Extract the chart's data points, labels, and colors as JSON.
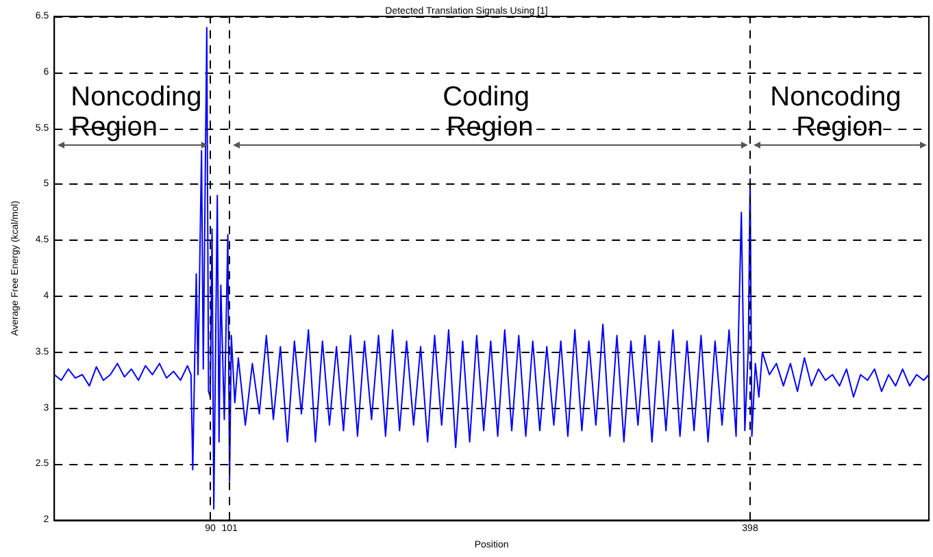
{
  "chart_data": {
    "type": "line",
    "title": "Detected Translation Signals Using [1]",
    "xlabel": "Position",
    "ylabel": "Average Free Energy (kcal/mol)",
    "x": [
      1,
      5,
      9,
      13,
      17,
      21,
      25,
      29,
      33,
      37,
      41,
      45,
      49,
      53,
      57,
      61,
      65,
      69,
      73,
      77,
      79,
      80,
      82,
      83,
      85,
      86,
      88,
      89,
      90,
      91,
      92,
      94,
      95,
      96,
      98,
      100,
      101,
      102,
      104,
      106,
      110,
      114,
      118,
      122,
      126,
      130,
      134,
      138,
      142,
      146,
      150,
      154,
      158,
      162,
      166,
      170,
      174,
      178,
      182,
      186,
      190,
      194,
      198,
      202,
      206,
      210,
      214,
      218,
      222,
      226,
      230,
      234,
      238,
      242,
      246,
      250,
      254,
      258,
      262,
      266,
      270,
      274,
      278,
      282,
      286,
      290,
      294,
      298,
      302,
      306,
      310,
      314,
      318,
      322,
      326,
      330,
      334,
      338,
      342,
      346,
      350,
      354,
      358,
      362,
      366,
      370,
      374,
      378,
      382,
      386,
      390,
      393,
      395,
      397,
      398,
      399,
      401,
      403,
      405,
      409,
      413,
      417,
      421,
      425,
      429,
      433,
      437,
      441,
      445,
      449,
      453,
      457,
      461,
      465,
      469,
      473,
      477,
      481,
      485,
      489,
      493,
      497,
      500
    ],
    "series": [
      {
        "color": "#0000ff",
        "values": [
          3.3,
          3.25,
          3.35,
          3.27,
          3.3,
          3.2,
          3.37,
          3.25,
          3.3,
          3.4,
          3.28,
          3.35,
          3.25,
          3.38,
          3.3,
          3.4,
          3.27,
          3.33,
          3.25,
          3.38,
          3.3,
          2.45,
          4.2,
          3.3,
          5.3,
          3.35,
          6.4,
          3.15,
          3.1,
          4.6,
          2.1,
          4.9,
          2.7,
          4.1,
          2.9,
          4.55,
          2.35,
          3.65,
          3.05,
          3.45,
          2.85,
          3.4,
          2.95,
          3.65,
          2.9,
          3.55,
          2.7,
          3.6,
          2.95,
          3.7,
          2.7,
          3.6,
          2.85,
          3.55,
          2.8,
          3.65,
          2.75,
          3.6,
          2.9,
          3.65,
          2.75,
          3.7,
          2.8,
          3.6,
          2.85,
          3.55,
          2.7,
          3.65,
          2.85,
          3.7,
          2.65,
          3.6,
          2.7,
          3.65,
          2.8,
          3.6,
          2.75,
          3.7,
          2.8,
          3.65,
          2.75,
          3.6,
          2.8,
          3.55,
          2.85,
          3.6,
          2.75,
          3.7,
          2.8,
          3.6,
          2.85,
          3.75,
          2.75,
          3.65,
          2.7,
          3.6,
          2.85,
          3.65,
          2.7,
          3.6,
          2.8,
          3.7,
          2.75,
          3.6,
          2.8,
          3.65,
          2.7,
          3.6,
          2.85,
          3.7,
          2.75,
          4.75,
          2.8,
          3.55,
          5.05,
          2.75,
          3.4,
          3.1,
          3.5,
          3.3,
          3.4,
          3.2,
          3.4,
          3.15,
          3.45,
          3.2,
          3.35,
          3.25,
          3.3,
          3.2,
          3.35,
          3.1,
          3.3,
          3.25,
          3.35,
          3.15,
          3.3,
          3.2,
          3.35,
          3.2,
          3.3,
          3.25,
          3.3
        ]
      }
    ],
    "xlim": [
      1,
      500
    ],
    "xticks": [
      90,
      101,
      398
    ],
    "ylim": [
      2,
      6.5
    ],
    "yticks": [
      2,
      2.5,
      3,
      3.5,
      4,
      4.5,
      5,
      5.5,
      6,
      6.5
    ],
    "grid": "y",
    "marker": "none",
    "line_style": "solid",
    "ref_lines": [
      {
        "axis": "x",
        "value": 90,
        "color": "#000000",
        "line_style": "dashed"
      },
      {
        "axis": "x",
        "value": 101,
        "color": "#000000",
        "line_style": "dashed"
      },
      {
        "axis": "x",
        "value": 398,
        "color": "#000000",
        "line_style": "dashed"
      }
    ],
    "annotations": [
      "Noncoding Region",
      "Coding Region",
      "Noncoding Region"
    ]
  }
}
